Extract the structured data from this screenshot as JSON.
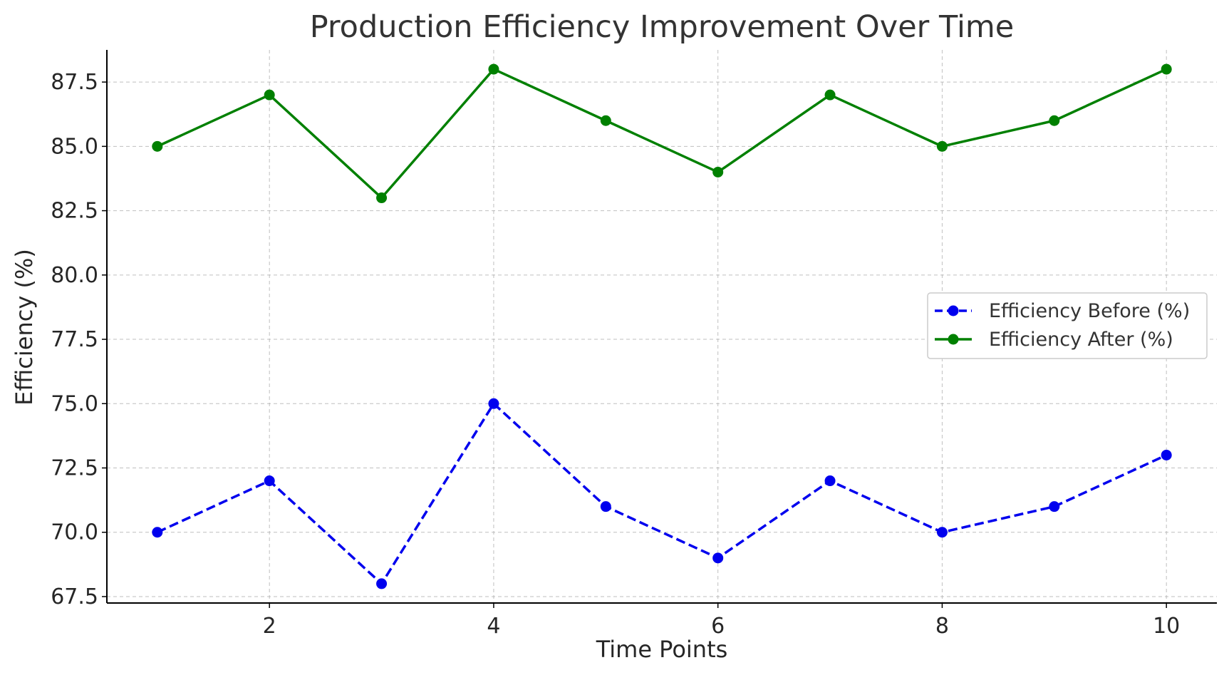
{
  "chart_data": {
    "type": "line",
    "title": "Production Efficiency Improvement Over Time",
    "xlabel": "Time Points",
    "ylabel": "Efficiency (%)",
    "x": [
      1,
      2,
      3,
      4,
      5,
      6,
      7,
      8,
      9,
      10
    ],
    "xlim": [
      0.55,
      10.45
    ],
    "ylim": [
      67.25,
      88.75
    ],
    "xticks": [
      2,
      4,
      6,
      8,
      10
    ],
    "xtick_labels": [
      "2",
      "4",
      "6",
      "8",
      "10"
    ],
    "yticks": [
      67.5,
      70.0,
      72.5,
      75.0,
      77.5,
      80.0,
      82.5,
      85.0,
      87.5
    ],
    "ytick_labels": [
      "67.5",
      "70.0",
      "72.5",
      "75.0",
      "77.5",
      "80.0",
      "82.5",
      "85.0",
      "87.5"
    ],
    "grid": true,
    "legend_position": "center-right",
    "series": [
      {
        "name": "Efficiency Before (%)",
        "values": [
          70,
          72,
          68,
          75,
          71,
          69,
          72,
          70,
          71,
          73
        ],
        "color": "#0000ee",
        "line_style": "dashed",
        "marker": "circle"
      },
      {
        "name": "Efficiency After (%)",
        "values": [
          85,
          87,
          83,
          88,
          86,
          84,
          87,
          85,
          86,
          88
        ],
        "color": "#008000",
        "line_style": "solid",
        "marker": "circle"
      }
    ]
  }
}
